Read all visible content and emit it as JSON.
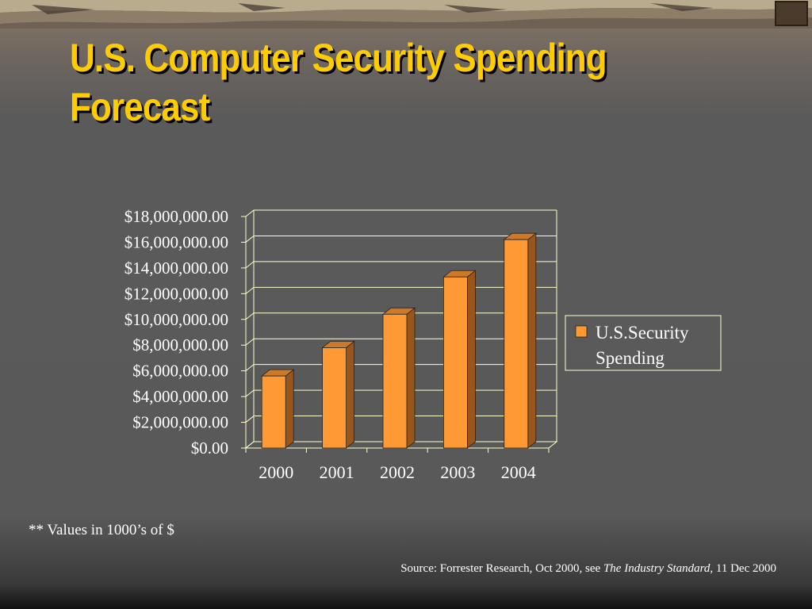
{
  "slide": {
    "title_line1": "U.S. Computer Security Spending",
    "title_line2": "Forecast",
    "note": "** Values in 1000’s of $",
    "source_prefix": "Source: Forrester Research, Oct 2000, see ",
    "source_publication": "The Industry Standard",
    "source_suffix": ", 11 Dec 2000"
  },
  "colors": {
    "title": "#ffcc00",
    "bar_front": "#ff9933",
    "bar_side": "#99561c",
    "bar_top": "#cc7a29",
    "axis": "#ffffcc",
    "text": "#ffffff"
  },
  "chart_data": {
    "type": "bar",
    "categories": [
      "2000",
      "2001",
      "2002",
      "2003",
      "2004"
    ],
    "series": [
      {
        "name": "U.S.Security Spending",
        "values": [
          5600000,
          7800000,
          10400000,
          13300000,
          16200000
        ]
      }
    ],
    "y_ticks": [
      "$0.00",
      "$2,000,000.00",
      "$4,000,000.00",
      "$6,000,000.00",
      "$8,000,000.00",
      "$10,000,000.00",
      "$12,000,000.00",
      "$14,000,000.00",
      "$16,000,000.00",
      "$18,000,000.00"
    ],
    "ylim": [
      0,
      18000000
    ],
    "legend_lines": [
      "U.S.Security",
      "Spending"
    ],
    "legend_position": "right",
    "grid": true,
    "style": "3d-column"
  }
}
